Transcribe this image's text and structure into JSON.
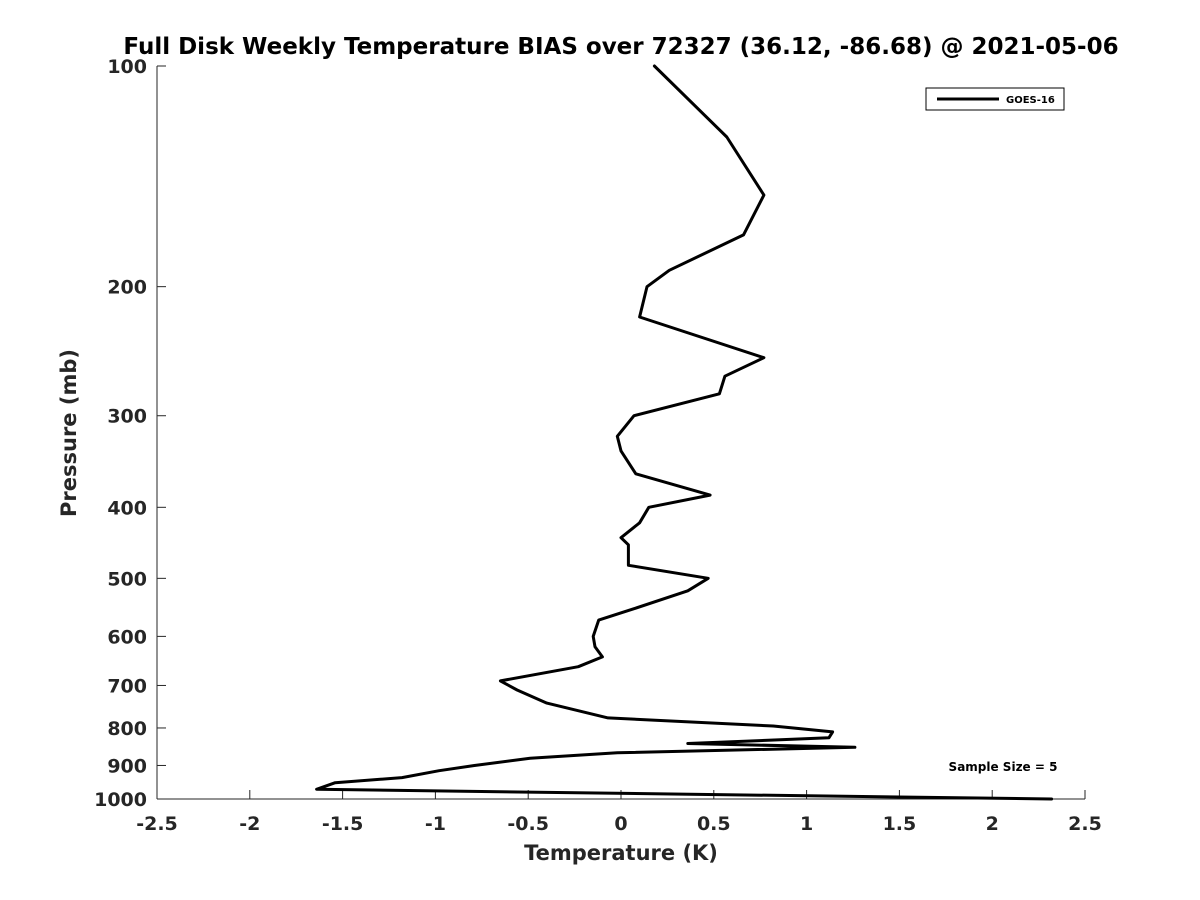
{
  "chart_data": {
    "type": "line",
    "title": "Full Disk Weekly Temperature BIAS over 72327 (36.12, -86.68) @ 2021-05-06",
    "xlabel": "Temperature (K)",
    "ylabel": "Pressure (mb)",
    "xlim": [
      -2.5,
      2.5
    ],
    "ylim": [
      1000,
      100
    ],
    "yscale": "log",
    "y_reversed": true,
    "x_ticks": [
      -2.5,
      -2,
      -1.5,
      -1,
      -0.5,
      0,
      0.5,
      1,
      1.5,
      2,
      2.5
    ],
    "x_tick_labels": [
      "-2.5",
      "-2",
      "-1.5",
      "-1",
      "-0.5",
      "0",
      "0.5",
      "1",
      "1.5",
      "2",
      "2.5"
    ],
    "y_ticks": [
      100,
      200,
      300,
      400,
      500,
      600,
      700,
      800,
      900,
      1000
    ],
    "y_tick_labels": [
      "100",
      "200",
      "300",
      "400",
      "500",
      "600",
      "700",
      "800",
      "900",
      "1000"
    ],
    "grid": false,
    "legend_position": "top-right",
    "series": [
      {
        "name": "GOES-16",
        "color": "#000000",
        "x": [
          0.18,
          0.57,
          0.77,
          0.66,
          0.26,
          0.14,
          0.1,
          0.77,
          0.56,
          0.53,
          0.07,
          -0.02,
          0.0,
          0.08,
          0.48,
          0.15,
          0.1,
          0.0,
          0.04,
          0.04,
          0.47,
          0.36,
          0.07,
          -0.12,
          -0.15,
          -0.14,
          -0.1,
          -0.23,
          -0.65,
          -0.56,
          -0.4,
          -0.07,
          0.82,
          1.14,
          1.12,
          0.36,
          1.26,
          -0.02,
          -0.49,
          -0.79,
          -0.98,
          -1.18,
          -1.54,
          -1.64,
          2.32
        ],
        "y": [
          100,
          125,
          150,
          170,
          190,
          200,
          220,
          250,
          265,
          280,
          300,
          320,
          335,
          360,
          385,
          400,
          420,
          440,
          450,
          480,
          500,
          520,
          550,
          570,
          600,
          620,
          640,
          660,
          690,
          710,
          740,
          775,
          795,
          810,
          825,
          840,
          850,
          865,
          880,
          900,
          915,
          935,
          950,
          970,
          1000
        ]
      }
    ],
    "annotations": [
      "Sample Size = 5"
    ]
  }
}
